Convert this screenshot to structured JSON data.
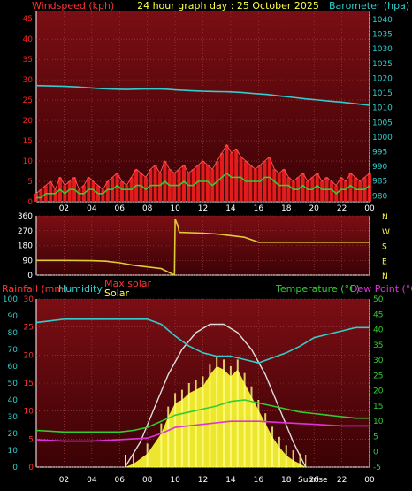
{
  "title": "24 hour graph day : 25 October 2025",
  "colors": {
    "background": "#000000",
    "panel_top": "#7a0e14",
    "panel_bottom": "#3b0205",
    "wind": "#ff2020",
    "gust_bright": "#ff5050",
    "wind_avg": "#33cc33",
    "baro": "#33cccc",
    "direction": "#ddcc33",
    "temperature": "#33cc33",
    "dewpoint": "#dd33dd",
    "humidity": "#33cccc",
    "solar": "#ffff33",
    "maxsolar": "#dddddd",
    "rain": "#ff3333",
    "xtick": "#ffffff",
    "title_color": "#ffff44"
  },
  "chart_data": [
    {
      "type": "line",
      "name": "wind-baro",
      "left_label": "Windspeed (kph)",
      "right_label": "Barometer (hpa)",
      "x_ticks": [
        "02",
        "04",
        "06",
        "08",
        "10",
        "12",
        "14",
        "16",
        "18",
        "20",
        "22",
        "00"
      ],
      "y_left_ticks": [
        0,
        5,
        10,
        15,
        20,
        25,
        30,
        35,
        40,
        45
      ],
      "y_left_range": [
        0,
        47
      ],
      "y_right_ticks": [
        980,
        985,
        990,
        995,
        1000,
        1005,
        1010,
        1015,
        1020,
        1025,
        1030,
        1035,
        1040
      ],
      "y_right_range": [
        978,
        1043
      ],
      "series": [
        {
          "key": "gust",
          "values": [
            2,
            3,
            4,
            5,
            3,
            6,
            4,
            5,
            6,
            3,
            4,
            6,
            5,
            4,
            3,
            5,
            6,
            7,
            5,
            4,
            6,
            8,
            7,
            6,
            8,
            9,
            7,
            10,
            8,
            7,
            8,
            9,
            7,
            8,
            9,
            10,
            9,
            8,
            10,
            12,
            14,
            12,
            13,
            11,
            10,
            9,
            8,
            9,
            10,
            11,
            8,
            7,
            8,
            6,
            5,
            6,
            7,
            5,
            6,
            7,
            5,
            6,
            5,
            4,
            6,
            5,
            7,
            6,
            5,
            6,
            7
          ]
        },
        {
          "key": "wind_avg",
          "values": [
            1,
            1,
            2,
            2,
            2,
            3,
            2,
            3,
            3,
            2,
            2,
            3,
            3,
            2,
            2,
            3,
            3,
            4,
            3,
            3,
            3,
            4,
            4,
            3,
            4,
            4,
            4,
            5,
            4,
            4,
            4,
            5,
            4,
            4,
            5,
            5,
            5,
            4,
            5,
            6,
            7,
            6,
            6,
            6,
            5,
            5,
            5,
            5,
            6,
            6,
            5,
            4,
            4,
            4,
            3,
            3,
            4,
            3,
            3,
            4,
            3,
            3,
            3,
            2,
            3,
            3,
            4,
            3,
            3,
            3,
            4
          ]
        },
        {
          "key": "baro",
          "values": [
            1017.5,
            1017.4,
            1017.3,
            1017.1,
            1016.8,
            1016.5,
            1016.3,
            1016.2,
            1016.3,
            1016.4,
            1016.3,
            1016.0,
            1015.8,
            1015.6,
            1015.5,
            1015.4,
            1015.2,
            1014.8,
            1014.5,
            1014.0,
            1013.5,
            1013.0,
            1012.6,
            1012.2,
            1011.8,
            1011.3,
            1010.8
          ]
        }
      ]
    },
    {
      "type": "line",
      "name": "wind-direction",
      "y_left_ticks": [
        0,
        90,
        180,
        270,
        360
      ],
      "y_left_range": [
        0,
        360
      ],
      "compass_labels": [
        "N",
        "W",
        "S",
        "E",
        "N"
      ],
      "series": [
        {
          "key": "direction",
          "values": [
            [
              0,
              90
            ],
            [
              2,
              90
            ],
            [
              4,
              88
            ],
            [
              5,
              85
            ],
            [
              6,
              75
            ],
            [
              7,
              60
            ],
            [
              8,
              50
            ],
            [
              9,
              40
            ],
            [
              9.95,
              0
            ],
            [
              10,
              340
            ],
            [
              10.2,
              300
            ],
            [
              10.3,
              260
            ],
            [
              12,
              255
            ],
            [
              13,
              250
            ],
            [
              14,
              240
            ],
            [
              15,
              230
            ],
            [
              15.5,
              215
            ],
            [
              16,
              200
            ],
            [
              18,
              200
            ],
            [
              20,
              200
            ],
            [
              22,
              200
            ],
            [
              24,
              200
            ]
          ]
        }
      ]
    },
    {
      "type": "line",
      "name": "temp-hum-solar",
      "left_label_rain": "Rainfall (mm)",
      "left_label_hum": "Humidity",
      "center_label_max": "Max solar",
      "center_label_solar": "Solar",
      "right_label_temp": "Temperature (°C)",
      "right_label_dew": "Dew Point (°C)",
      "hum_ticks": [
        0,
        10,
        20,
        30,
        40,
        50,
        60,
        70,
        80,
        90,
        100
      ],
      "rain_ticks": [
        0,
        5,
        10,
        15,
        20,
        25,
        30
      ],
      "temp_ticks": [
        -5,
        0,
        5,
        10,
        15,
        20,
        25,
        30,
        35,
        40,
        45,
        50
      ],
      "hum_range": [
        0,
        100
      ],
      "rain_range": [
        0,
        30
      ],
      "temp_range": [
        -5,
        50
      ],
      "sunrise_label": "Sunrise",
      "sunset_label": "Sunset",
      "series": [
        {
          "key": "humidity",
          "values": [
            [
              0,
              86
            ],
            [
              2,
              88
            ],
            [
              4,
              88
            ],
            [
              6,
              88
            ],
            [
              8,
              88
            ],
            [
              9,
              85
            ],
            [
              10,
              78
            ],
            [
              11,
              72
            ],
            [
              12,
              68
            ],
            [
              13,
              66
            ],
            [
              14,
              66
            ],
            [
              15,
              64
            ],
            [
              16,
              62
            ],
            [
              17,
              65
            ],
            [
              18,
              68
            ],
            [
              19,
              72
            ],
            [
              20,
              77
            ],
            [
              21,
              79
            ],
            [
              22,
              81
            ],
            [
              23,
              83
            ],
            [
              24,
              83
            ]
          ]
        },
        {
          "key": "temperature",
          "values": [
            [
              0,
              7
            ],
            [
              2,
              6.5
            ],
            [
              4,
              6.5
            ],
            [
              6,
              6.5
            ],
            [
              7,
              7
            ],
            [
              8,
              8
            ],
            [
              9,
              10
            ],
            [
              10,
              12
            ],
            [
              11,
              13
            ],
            [
              12,
              14
            ],
            [
              13,
              15
            ],
            [
              14,
              16.5
            ],
            [
              15,
              17
            ],
            [
              16,
              16
            ],
            [
              17,
              15
            ],
            [
              18,
              14
            ],
            [
              19,
              13
            ],
            [
              20,
              12.5
            ],
            [
              21,
              12
            ],
            [
              22,
              11.5
            ],
            [
              23,
              11
            ],
            [
              24,
              11
            ]
          ]
        },
        {
          "key": "dewpoint",
          "values": [
            [
              0,
              4
            ],
            [
              2,
              3.5
            ],
            [
              4,
              3.5
            ],
            [
              6,
              4
            ],
            [
              8,
              4.5
            ],
            [
              9,
              6
            ],
            [
              10,
              8
            ],
            [
              12,
              9
            ],
            [
              14,
              10
            ],
            [
              16,
              10
            ],
            [
              18,
              9.5
            ],
            [
              20,
              9
            ],
            [
              22,
              8.5
            ],
            [
              24,
              8.5
            ]
          ]
        },
        {
          "key": "maxsolar",
          "values": [
            [
              6.4,
              0
            ],
            [
              7.5,
              15
            ],
            [
              8.5,
              35
            ],
            [
              9.5,
              55
            ],
            [
              10.5,
              70
            ],
            [
              11.5,
              80
            ],
            [
              12.5,
              85
            ],
            [
              13.5,
              85
            ],
            [
              14.5,
              80
            ],
            [
              15.5,
              70
            ],
            [
              16.5,
              55
            ],
            [
              17.5,
              35
            ],
            [
              18.5,
              15
            ],
            [
              19.4,
              0
            ]
          ]
        },
        {
          "key": "solar",
          "values": [
            [
              6.4,
              0
            ],
            [
              7,
              2
            ],
            [
              8,
              8
            ],
            [
              9,
              20
            ],
            [
              9.5,
              30
            ],
            [
              10,
              38
            ],
            [
              10.5,
              40
            ],
            [
              11,
              44
            ],
            [
              11.5,
              46
            ],
            [
              12,
              48
            ],
            [
              12.5,
              55
            ],
            [
              13,
              60
            ],
            [
              13.5,
              58
            ],
            [
              14,
              54
            ],
            [
              14.5,
              58
            ],
            [
              15,
              50
            ],
            [
              15.5,
              42
            ],
            [
              16,
              34
            ],
            [
              16.5,
              26
            ],
            [
              17,
              18
            ],
            [
              17.5,
              12
            ],
            [
              18,
              7
            ],
            [
              18.5,
              4
            ],
            [
              19,
              2
            ],
            [
              19.4,
              0
            ]
          ]
        }
      ]
    }
  ]
}
